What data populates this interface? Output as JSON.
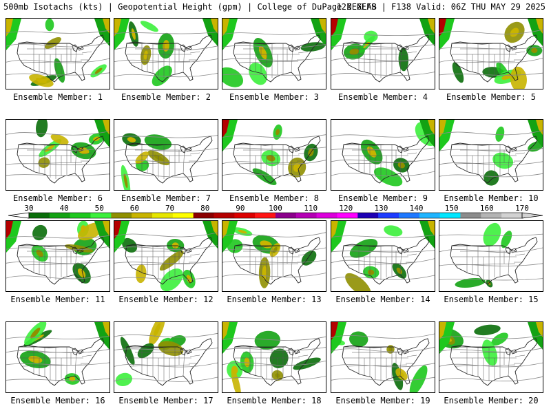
{
  "header": {
    "left": "500mb Isotachs (kts) | Geopotential Height (gpm) | College of DuPage NEXLAB",
    "right": "12Z GEFS | F138 Valid: 06Z THU MAY 29 2025"
  },
  "panels": [
    {
      "label": "Ensemble Member: 1"
    },
    {
      "label": "Ensemble Member: 2"
    },
    {
      "label": "Ensemble Member: 3"
    },
    {
      "label": "Ensemble Member: 4"
    },
    {
      "label": "Ensemble Member: 5"
    },
    {
      "label": "Ensemble Member: 6"
    },
    {
      "label": "Ensemble Member: 7"
    },
    {
      "label": "Ensemble Member: 8"
    },
    {
      "label": "Ensemble Member: 9"
    },
    {
      "label": "Ensemble Member: 10"
    },
    {
      "label": "Ensemble Member: 11"
    },
    {
      "label": "Ensemble Member: 12"
    },
    {
      "label": "Ensemble Member: 13"
    },
    {
      "label": "Ensemble Member: 14"
    },
    {
      "label": "Ensemble Member: 15"
    },
    {
      "label": "Ensemble Member: 16"
    },
    {
      "label": "Ensemble Member: 17"
    },
    {
      "label": "Ensemble Member: 18"
    },
    {
      "label": "Ensemble Member: 19"
    },
    {
      "label": "Ensemble Member: 20"
    }
  ],
  "colorbar": {
    "ticks": [
      "30",
      "40",
      "50",
      "60",
      "70",
      "80",
      "90",
      "100",
      "110",
      "120",
      "130",
      "140",
      "150",
      "160",
      "170"
    ],
    "colors": [
      "#0a6e0a",
      "#13a213",
      "#1ec81e",
      "#3cf03c",
      "#8f8f00",
      "#c8b400",
      "#e6e600",
      "#ffff00",
      "#8b0000",
      "#b40000",
      "#dc0000",
      "#ff1414",
      "#8b008b",
      "#b400b4",
      "#dc00dc",
      "#ff00ff",
      "#1e00b4",
      "#1e3cff",
      "#1e78ff",
      "#1eb4ff",
      "#00e6ff",
      "#8c8c8c",
      "#b4b4b4",
      "#d2d2d2"
    ]
  }
}
